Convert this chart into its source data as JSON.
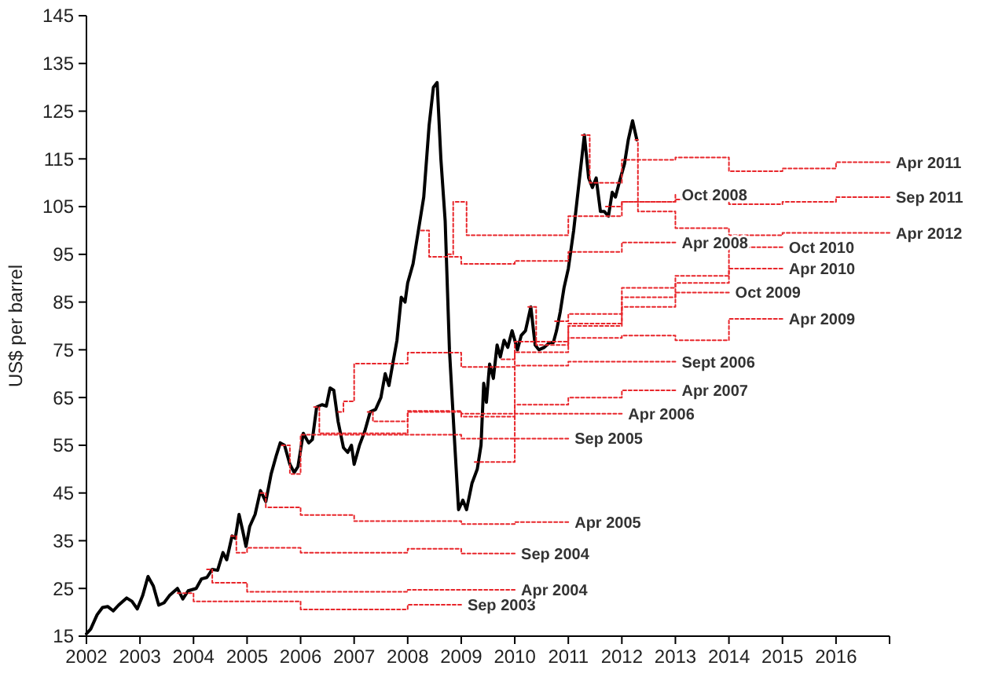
{
  "chart_data": {
    "type": "step",
    "ylabel": "US$ per barrel",
    "xlim": [
      2002,
      2017
    ],
    "ylim": [
      15,
      145
    ],
    "xticks": [
      2002,
      2003,
      2004,
      2005,
      2006,
      2007,
      2008,
      2009,
      2010,
      2011,
      2012,
      2013,
      2014,
      2015,
      2016,
      {
        "value": 2017,
        "label": null
      }
    ],
    "yticks": [
      15,
      25,
      35,
      45,
      55,
      65,
      75,
      85,
      95,
      105,
      115,
      125,
      135,
      145
    ],
    "grid": false,
    "legend": false,
    "line_style": "dotted",
    "marker": "none",
    "series": [
      {
        "name": "Sep 2003",
        "color": "#e8262b",
        "x": [
          2003.7,
          2004,
          2006,
          2008,
          2009
        ],
        "values": [
          24,
          22.3,
          20.6,
          21.6,
          21.6
        ]
      },
      {
        "name": "Apr 2004",
        "color": "#e8262b",
        "x": [
          2004.25,
          2004.35,
          2005,
          2008,
          2010
        ],
        "values": [
          29,
          26.2,
          24.3,
          24.7,
          24.7
        ]
      },
      {
        "name": "Sep 2004",
        "color": "#e8262b",
        "x": [
          2004.7,
          2004.8,
          2005,
          2006,
          2008,
          2009,
          2010
        ],
        "values": [
          36,
          32.5,
          33.5,
          32.5,
          33.3,
          32.3,
          32.3
        ]
      },
      {
        "name": "Apr 2005",
        "color": "#e8262b",
        "x": [
          2005.25,
          2005.35,
          2006,
          2007,
          2009,
          2010,
          2011
        ],
        "values": [
          45,
          42,
          40.4,
          39.1,
          38.5,
          38.9,
          38.9
        ]
      },
      {
        "name": "Sep 2005",
        "color": "#e8262b",
        "x": [
          2005.65,
          2005.8,
          2006,
          2009,
          2011
        ],
        "values": [
          55,
          49,
          57.2,
          56.4,
          56.4
        ]
      },
      {
        "name": "Apr 2006",
        "color": "#e8262b",
        "x": [
          2006.25,
          2006.35,
          2008,
          2009,
          2012
        ],
        "values": [
          63,
          57.5,
          62.2,
          61.6,
          61.6
        ]
      },
      {
        "name": "Sept 2006",
        "color": "#e8262b",
        "x": [
          2006.7,
          2006.8,
          2007,
          2008,
          2009,
          2010,
          2011,
          2013
        ],
        "values": [
          62,
          64.2,
          72.1,
          74.4,
          71.4,
          71.7,
          72.5,
          72.5
        ]
      },
      {
        "name": "Apr 2007",
        "color": "#e8262b",
        "x": [
          2007.25,
          2007.35,
          2008,
          2009,
          2010,
          2011,
          2012,
          2013
        ],
        "values": [
          62,
          60,
          62,
          61,
          63.5,
          65,
          66.5,
          66.5
        ]
      },
      {
        "name": "Apr 2008",
        "color": "#e8262b",
        "x": [
          2008.25,
          2008.4,
          2009,
          2010,
          2011,
          2012,
          2013
        ],
        "values": [
          100,
          94.5,
          93,
          93.6,
          95.5,
          97.5,
          97.5
        ]
      },
      {
        "name": "Oct 2008",
        "color": "#e8262b",
        "x": [
          2008.75,
          2008.85,
          2009.1,
          2010,
          2011,
          2012,
          2013
        ],
        "values": [
          95,
          106,
          99,
          99,
          103,
          106,
          107.5
        ]
      },
      {
        "name": "Apr 2009",
        "color": "#e8262b",
        "x": [
          2009.25,
          2010,
          2011,
          2012,
          2013,
          2014,
          2015
        ],
        "values": [
          51.5,
          76.7,
          77.5,
          78,
          77,
          81.5,
          81.5
        ]
      },
      {
        "name": "Oct 2009",
        "color": "#e8262b",
        "x": [
          2009.75,
          2010,
          2011,
          2012,
          2013,
          2014
        ],
        "values": [
          73,
          74.5,
          80,
          84,
          87,
          87
        ]
      },
      {
        "name": "Apr 2010",
        "color": "#e8262b",
        "x": [
          2010.25,
          2010.4,
          2011,
          2012,
          2013,
          2014,
          2015
        ],
        "values": [
          84,
          76,
          80.5,
          86,
          89,
          92,
          92
        ]
      },
      {
        "name": "Oct 2010",
        "color": "#e8262b",
        "x": [
          2010.75,
          2011,
          2012,
          2013,
          2014,
          2015
        ],
        "values": [
          81,
          82.5,
          88,
          90.5,
          96.5,
          96.5
        ]
      },
      {
        "name": "Apr 2011",
        "color": "#e8262b",
        "x": [
          2011.25,
          2011.4,
          2012,
          2013,
          2014,
          2015,
          2016,
          2017
        ],
        "values": [
          120,
          110,
          114.8,
          115.3,
          112.4,
          113,
          114.3,
          114.3
        ]
      },
      {
        "name": "Sep 2011",
        "color": "#e8262b",
        "x": [
          2011.7,
          2012,
          2013,
          2014,
          2015,
          2016,
          2017
        ],
        "values": [
          105,
          106,
          106.5,
          105.5,
          106,
          107,
          107
        ]
      },
      {
        "name": "Apr 2012",
        "color": "#e8262b",
        "x": [
          2012.25,
          2012.3,
          2013,
          2014,
          2015,
          2016,
          2017
        ],
        "values": [
          119,
          104,
          100.5,
          99,
          99.5,
          99.5,
          99.5
        ]
      },
      {
        "type": "line",
        "line_style": "solid",
        "color": "#000000",
        "x": [
          2002.0,
          2002.08,
          2002.2,
          2002.3,
          2002.4,
          2002.5,
          2002.6,
          2002.75,
          2002.85,
          2002.95,
          2003.05,
          2003.15,
          2003.25,
          2003.35,
          2003.45,
          2003.55,
          2003.7,
          2003.8,
          2003.9,
          2004.05,
          2004.15,
          2004.25,
          2004.35,
          2004.45,
          2004.55,
          2004.62,
          2004.72,
          2004.78,
          2004.85,
          2004.92,
          2004.98,
          2005.05,
          2005.15,
          2005.25,
          2005.35,
          2005.45,
          2005.55,
          2005.62,
          2005.7,
          2005.8,
          2005.88,
          2005.95,
          2006.05,
          2006.15,
          2006.22,
          2006.3,
          2006.4,
          2006.48,
          2006.55,
          2006.62,
          2006.7,
          2006.8,
          2006.88,
          2006.95,
          2007.0,
          2007.1,
          2007.2,
          2007.3,
          2007.4,
          2007.5,
          2007.58,
          2007.65,
          2007.72,
          2007.8,
          2007.88,
          2007.95,
          2008.0,
          2008.1,
          2008.2,
          2008.3,
          2008.4,
          2008.48,
          2008.55,
          2008.62,
          2008.7,
          2008.78,
          2008.88,
          2008.95,
          2009.03,
          2009.1,
          2009.2,
          2009.3,
          2009.37,
          2009.42,
          2009.47,
          2009.53,
          2009.6,
          2009.67,
          2009.73,
          2009.8,
          2009.87,
          2009.95,
          2010.05,
          2010.12,
          2010.2,
          2010.3,
          2010.38,
          2010.45,
          2010.55,
          2010.65,
          2010.72,
          2010.78,
          2010.85,
          2010.92,
          2011.0,
          2011.1,
          2011.2,
          2011.3,
          2011.38,
          2011.45,
          2011.52,
          2011.6,
          2011.67,
          2011.75,
          2011.82,
          2011.88,
          2011.95,
          2012.05,
          2012.12,
          2012.2,
          2012.28
        ],
        "values": [
          15.5,
          16.5,
          19.5,
          21,
          21.2,
          20.3,
          21.5,
          23,
          22.3,
          20.7,
          23.5,
          27.5,
          25.5,
          21.5,
          22,
          23.5,
          25,
          22.8,
          24.5,
          25,
          27,
          27.3,
          29,
          28.8,
          32.5,
          31,
          36,
          35.5,
          40.5,
          37,
          33.8,
          38,
          40.5,
          45.5,
          43.2,
          49,
          53,
          55.5,
          55,
          51,
          49.3,
          50.5,
          57.5,
          55.5,
          56.2,
          63,
          63.5,
          63.2,
          67,
          66.5,
          60,
          54.5,
          53.5,
          55,
          51,
          55,
          58,
          62,
          62.5,
          65,
          70,
          67.5,
          72,
          77,
          86,
          85,
          89,
          93,
          100,
          107,
          122,
          130,
          131,
          115,
          102,
          75,
          55,
          41.5,
          43.5,
          41.5,
          47,
          50,
          55,
          68,
          64,
          72,
          69,
          76,
          73.5,
          77,
          75.5,
          79,
          75,
          78,
          79,
          84,
          76,
          75,
          75.5,
          76.5,
          76.5,
          79,
          83,
          88,
          92,
          100,
          110,
          120,
          111,
          109,
          111,
          104,
          104,
          103,
          108,
          107,
          110,
          114,
          119,
          123,
          119
        ]
      }
    ]
  }
}
